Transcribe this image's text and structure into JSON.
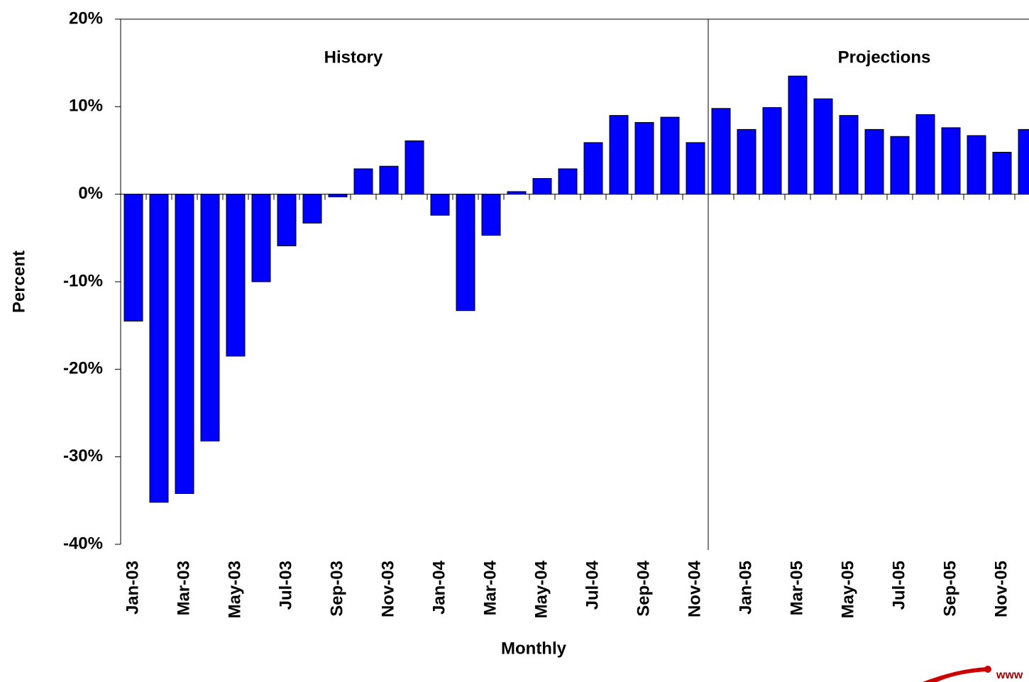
{
  "chart_data": {
    "type": "bar",
    "ylabel": "Percent",
    "xlabel": "Monthly",
    "annotations": [
      "History",
      "Projections"
    ],
    "logo_text": "www",
    "categories": [
      "Jan-03",
      null,
      "Mar-03",
      null,
      "May-03",
      null,
      "Jul-03",
      null,
      "Sep-03",
      null,
      "Nov-03",
      null,
      "Jan-04",
      null,
      "Mar-04",
      null,
      "May-04",
      null,
      "Jul-04",
      null,
      "Sep-04",
      null,
      "Nov-04",
      null,
      "Jan-05",
      null,
      "Mar-05",
      null,
      "May-05",
      null,
      "Jul-05",
      null,
      "Sep-05",
      null,
      "Nov-05",
      null
    ],
    "values": [
      -14.5,
      -35.2,
      -34.2,
      -28.2,
      -18.5,
      -10.0,
      -5.9,
      -3.3,
      -0.3,
      2.9,
      3.2,
      6.1,
      -2.4,
      -13.3,
      -4.7,
      0.3,
      1.8,
      2.9,
      5.9,
      9.0,
      8.2,
      8.8,
      5.9,
      9.8,
      7.4,
      9.9,
      13.5,
      10.9,
      9.0,
      7.4,
      6.6,
      9.1,
      7.6,
      6.7,
      4.8,
      7.4
    ],
    "color": "#0000ff",
    "ylim": [
      -40,
      20
    ],
    "yticks": [
      {
        "value": -40,
        "label": "-40%"
      },
      {
        "value": -30,
        "label": "-30%"
      },
      {
        "value": -20,
        "label": "-20%"
      },
      {
        "value": -10,
        "label": "-10%"
      },
      {
        "value": 0,
        "label": "0%"
      },
      {
        "value": 10,
        "label": "10%"
      },
      {
        "value": 20,
        "label": "20%"
      }
    ]
  }
}
